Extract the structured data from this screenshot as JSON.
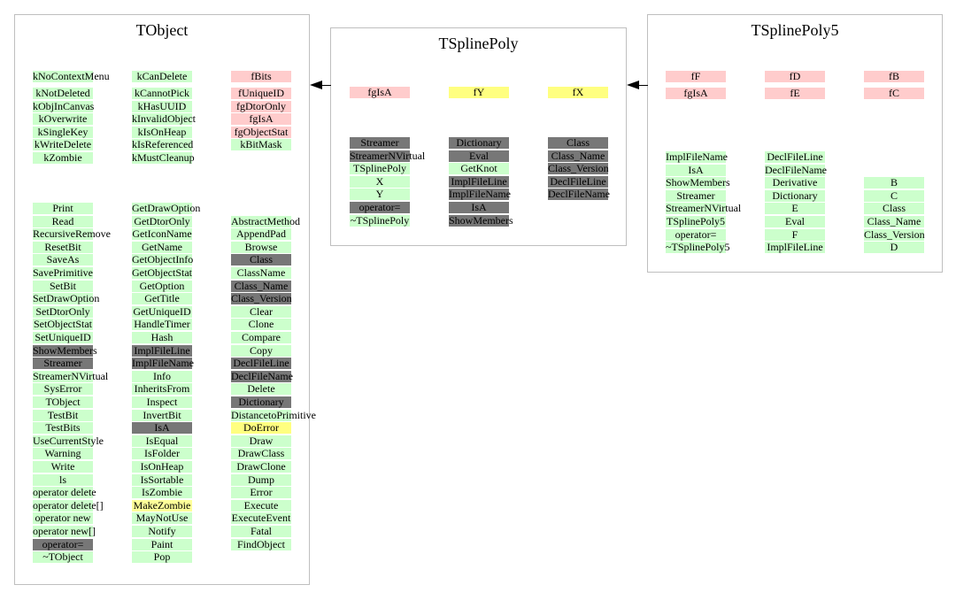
{
  "classes": [
    {
      "title": "TObject",
      "columns": [
        {
          "top": [
            {
              "text": "kNoContextMenu",
              "c": "green"
            }
          ],
          "rows": [
            {
              "text": "kNotDeleted",
              "c": "green"
            },
            {
              "text": "kObjInCanvas",
              "c": "green"
            },
            {
              "text": "kOverwrite",
              "c": "green"
            },
            {
              "text": "kSingleKey",
              "c": "green"
            },
            {
              "text": "kWriteDelete",
              "c": "green"
            },
            {
              "text": "kZombie",
              "c": "green"
            }
          ],
          "methods": [
            {
              "text": "Print",
              "c": "green"
            },
            {
              "text": "Read",
              "c": "green"
            },
            {
              "text": "RecursiveRemove",
              "c": "green"
            },
            {
              "text": "ResetBit",
              "c": "green"
            },
            {
              "text": "SaveAs",
              "c": "green"
            },
            {
              "text": "SavePrimitive",
              "c": "green"
            },
            {
              "text": "SetBit",
              "c": "green"
            },
            {
              "text": "SetDrawOption",
              "c": "green"
            },
            {
              "text": "SetDtorOnly",
              "c": "green"
            },
            {
              "text": "SetObjectStat",
              "c": "green"
            },
            {
              "text": "SetUniqueID",
              "c": "green"
            },
            {
              "text": "ShowMembers",
              "c": "gray"
            },
            {
              "text": "Streamer",
              "c": "gray"
            },
            {
              "text": "StreamerNVirtual",
              "c": "green"
            },
            {
              "text": "SysError",
              "c": "green"
            },
            {
              "text": "TObject",
              "c": "green"
            },
            {
              "text": "TestBit",
              "c": "green"
            },
            {
              "text": "TestBits",
              "c": "green"
            },
            {
              "text": "UseCurrentStyle",
              "c": "green"
            },
            {
              "text": "Warning",
              "c": "green"
            },
            {
              "text": "Write",
              "c": "green"
            },
            {
              "text": "ls",
              "c": "green"
            },
            {
              "text": "operator delete",
              "c": "green"
            },
            {
              "text": "operator delete[]",
              "c": "green"
            },
            {
              "text": "operator new",
              "c": "green"
            },
            {
              "text": "operator new[]",
              "c": "green"
            },
            {
              "text": "operator=",
              "c": "gray"
            },
            {
              "text": "~TObject",
              "c": "green"
            }
          ]
        },
        {
          "top": [
            {
              "text": "kCanDelete",
              "c": "green"
            }
          ],
          "rows": [
            {
              "text": "kCannotPick",
              "c": "green"
            },
            {
              "text": "kHasUUID",
              "c": "green"
            },
            {
              "text": "kInvalidObject",
              "c": "green"
            },
            {
              "text": "kIsOnHeap",
              "c": "green"
            },
            {
              "text": "kIsReferenced",
              "c": "green"
            },
            {
              "text": "kMustCleanup",
              "c": "green"
            }
          ],
          "methods": [
            {
              "text": "GetDrawOption",
              "c": "green"
            },
            {
              "text": "GetDtorOnly",
              "c": "green"
            },
            {
              "text": "GetIconName",
              "c": "green"
            },
            {
              "text": "GetName",
              "c": "green"
            },
            {
              "text": "GetObjectInfo",
              "c": "green"
            },
            {
              "text": "GetObjectStat",
              "c": "green"
            },
            {
              "text": "GetOption",
              "c": "green"
            },
            {
              "text": "GetTitle",
              "c": "green"
            },
            {
              "text": "GetUniqueID",
              "c": "green"
            },
            {
              "text": "HandleTimer",
              "c": "green"
            },
            {
              "text": "Hash",
              "c": "green"
            },
            {
              "text": "ImplFileLine",
              "c": "gray"
            },
            {
              "text": "ImplFileName",
              "c": "gray"
            },
            {
              "text": "Info",
              "c": "green"
            },
            {
              "text": "InheritsFrom",
              "c": "green"
            },
            {
              "text": "Inspect",
              "c": "green"
            },
            {
              "text": "InvertBit",
              "c": "green"
            },
            {
              "text": "IsA",
              "c": "gray"
            },
            {
              "text": "IsEqual",
              "c": "green"
            },
            {
              "text": "IsFolder",
              "c": "green"
            },
            {
              "text": "IsOnHeap",
              "c": "green"
            },
            {
              "text": "IsSortable",
              "c": "green"
            },
            {
              "text": "IsZombie",
              "c": "green"
            },
            {
              "text": "MakeZombie",
              "c": "yelpale"
            },
            {
              "text": "MayNotUse",
              "c": "green"
            },
            {
              "text": "Notify",
              "c": "green"
            },
            {
              "text": "Paint",
              "c": "green"
            },
            {
              "text": "Pop",
              "c": "green"
            }
          ]
        },
        {
          "top": [
            {
              "text": "fBits",
              "c": "pink"
            }
          ],
          "rows": [
            {
              "text": "fUniqueID",
              "c": "pink"
            },
            {
              "text": "fgDtorOnly",
              "c": "pink"
            },
            {
              "text": "fgIsA",
              "c": "pink"
            },
            {
              "text": "fgObjectStat",
              "c": "pink"
            },
            {
              "text": "kBitMask",
              "c": "green"
            }
          ],
          "methods": [
            {
              "text": "AbstractMethod",
              "c": "green"
            },
            {
              "text": "AppendPad",
              "c": "green"
            },
            {
              "text": "Browse",
              "c": "green"
            },
            {
              "text": "Class",
              "c": "gray"
            },
            {
              "text": "ClassName",
              "c": "green"
            },
            {
              "text": "Class_Name",
              "c": "gray"
            },
            {
              "text": "Class_Version",
              "c": "gray"
            },
            {
              "text": "Clear",
              "c": "green"
            },
            {
              "text": "Clone",
              "c": "green"
            },
            {
              "text": "Compare",
              "c": "green"
            },
            {
              "text": "Copy",
              "c": "green"
            },
            {
              "text": "DeclFileLine",
              "c": "gray"
            },
            {
              "text": "DeclFileName",
              "c": "gray"
            },
            {
              "text": "Delete",
              "c": "green"
            },
            {
              "text": "Dictionary",
              "c": "gray"
            },
            {
              "text": "DistancetoPrimitive",
              "c": "green"
            },
            {
              "text": "DoError",
              "c": "yellow"
            },
            {
              "text": "Draw",
              "c": "green"
            },
            {
              "text": "DrawClass",
              "c": "green"
            },
            {
              "text": "DrawClone",
              "c": "green"
            },
            {
              "text": "Dump",
              "c": "green"
            },
            {
              "text": "Error",
              "c": "green"
            },
            {
              "text": "Execute",
              "c": "green"
            },
            {
              "text": "ExecuteEvent",
              "c": "green"
            },
            {
              "text": "Fatal",
              "c": "green"
            },
            {
              "text": "FindObject",
              "c": "green"
            }
          ],
          "methodsStart": 1
        }
      ]
    },
    {
      "title": "TSplinePoly",
      "columns": [
        {
          "top": [
            {
              "text": "fgIsA",
              "c": "pink"
            }
          ],
          "methods": [
            {
              "text": "Streamer",
              "c": "gray"
            },
            {
              "text": "StreamerNVirtual",
              "c": "gray"
            },
            {
              "text": "TSplinePoly",
              "c": "green"
            },
            {
              "text": "X",
              "c": "green"
            },
            {
              "text": "Y",
              "c": "green"
            },
            {
              "text": "operator=",
              "c": "gray"
            },
            {
              "text": "~TSplinePoly",
              "c": "green"
            }
          ]
        },
        {
          "top": [
            {
              "text": "fY",
              "c": "yellow"
            }
          ],
          "methods": [
            {
              "text": "Dictionary",
              "c": "gray"
            },
            {
              "text": "Eval",
              "c": "gray"
            },
            {
              "text": "GetKnot",
              "c": "green"
            },
            {
              "text": "ImplFileLine",
              "c": "gray"
            },
            {
              "text": "ImplFileName",
              "c": "gray"
            },
            {
              "text": "IsA",
              "c": "gray"
            },
            {
              "text": "ShowMembers",
              "c": "gray"
            }
          ]
        },
        {
          "top": [
            {
              "text": "fX",
              "c": "yellow"
            }
          ],
          "methods": [
            {
              "text": "Class",
              "c": "gray"
            },
            {
              "text": "Class_Name",
              "c": "gray"
            },
            {
              "text": "Class_Version",
              "c": "gray"
            },
            {
              "text": "DeclFileLine",
              "c": "gray"
            },
            {
              "text": "DeclFileName",
              "c": "gray"
            }
          ]
        }
      ]
    },
    {
      "title": "TSplinePoly5",
      "columns": [
        {
          "top": [
            {
              "text": "fF",
              "c": "pink"
            },
            {
              "text": "fgIsA",
              "c": "pink"
            }
          ],
          "methods": [
            {
              "text": "ImplFileName",
              "c": "green"
            },
            {
              "text": "IsA",
              "c": "green"
            },
            {
              "text": "ShowMembers",
              "c": "green"
            },
            {
              "text": "Streamer",
              "c": "green"
            },
            {
              "text": "StreamerNVirtual",
              "c": "green"
            },
            {
              "text": "TSplinePoly5",
              "c": "green"
            },
            {
              "text": "operator=",
              "c": "green"
            },
            {
              "text": "~TSplinePoly5",
              "c": "green"
            }
          ]
        },
        {
          "top": [
            {
              "text": "fD",
              "c": "pink"
            },
            {
              "text": "fE",
              "c": "pink"
            }
          ],
          "methods": [
            {
              "text": "DeclFileLine",
              "c": "green"
            },
            {
              "text": "DeclFileName",
              "c": "green"
            },
            {
              "text": "Derivative",
              "c": "green"
            },
            {
              "text": "Dictionary",
              "c": "green"
            },
            {
              "text": "E",
              "c": "green"
            },
            {
              "text": "Eval",
              "c": "green"
            },
            {
              "text": "F",
              "c": "green"
            },
            {
              "text": "ImplFileLine",
              "c": "green"
            }
          ]
        },
        {
          "top": [
            {
              "text": "fB",
              "c": "pink"
            },
            {
              "text": "fC",
              "c": "pink"
            }
          ],
          "methods": [
            {
              "text": "B",
              "c": "green"
            },
            {
              "text": "C",
              "c": "green"
            },
            {
              "text": "Class",
              "c": "green"
            },
            {
              "text": "Class_Name",
              "c": "green"
            },
            {
              "text": "Class_Version",
              "c": "green"
            },
            {
              "text": "D",
              "c": "green"
            }
          ],
          "methodsStart": 2
        }
      ]
    }
  ]
}
